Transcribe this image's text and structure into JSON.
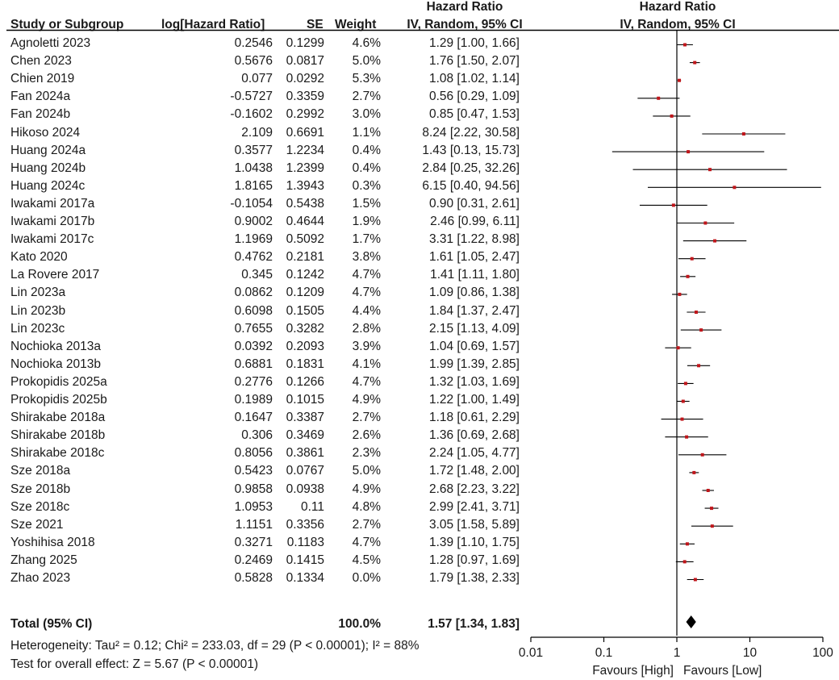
{
  "headers": {
    "study": "Study or Subgroup",
    "loghr": "log[Hazard Ratio]",
    "se": "SE",
    "weight": "Weight",
    "hr_top": "Hazard Ratio",
    "hr_bottom": "IV, Random, 95% CI",
    "plot_top": "Hazard Ratio",
    "plot_bottom": "IV, Random, 95% CI"
  },
  "rows": [
    {
      "study": "Agnoletti 2023",
      "loghr": "0.2546",
      "se": "0.1299",
      "weight": "4.6%",
      "ci": "1.29 [1.00, 1.66]"
    },
    {
      "study": "Chen 2023",
      "loghr": "0.5676",
      "se": "0.0817",
      "weight": "5.0%",
      "ci": "1.76 [1.50, 2.07]"
    },
    {
      "study": "Chien 2019",
      "loghr": "0.077",
      "se": "0.0292",
      "weight": "5.3%",
      "ci": "1.08 [1.02, 1.14]"
    },
    {
      "study": "Fan 2024a",
      "loghr": "-0.5727",
      "se": "0.3359",
      "weight": "2.7%",
      "ci": "0.56 [0.29, 1.09]"
    },
    {
      "study": "Fan 2024b",
      "loghr": "-0.1602",
      "se": "0.2992",
      "weight": "3.0%",
      "ci": "0.85 [0.47, 1.53]"
    },
    {
      "study": "Hikoso 2024",
      "loghr": "2.109",
      "se": "0.6691",
      "weight": "1.1%",
      "ci": "8.24 [2.22, 30.58]"
    },
    {
      "study": "Huang 2024a",
      "loghr": "0.3577",
      "se": "1.2234",
      "weight": "0.4%",
      "ci": "1.43 [0.13, 15.73]"
    },
    {
      "study": "Huang 2024b",
      "loghr": "1.0438",
      "se": "1.2399",
      "weight": "0.4%",
      "ci": "2.84 [0.25, 32.26]"
    },
    {
      "study": "Huang 2024c",
      "loghr": "1.8165",
      "se": "1.3943",
      "weight": "0.3%",
      "ci": "6.15 [0.40, 94.56]"
    },
    {
      "study": "Iwakami 2017a",
      "loghr": "-0.1054",
      "se": "0.5438",
      "weight": "1.5%",
      "ci": "0.90 [0.31, 2.61]"
    },
    {
      "study": "Iwakami 2017b",
      "loghr": "0.9002",
      "se": "0.4644",
      "weight": "1.9%",
      "ci": "2.46 [0.99, 6.11]"
    },
    {
      "study": "Iwakami 2017c",
      "loghr": "1.1969",
      "se": "0.5092",
      "weight": "1.7%",
      "ci": "3.31 [1.22, 8.98]"
    },
    {
      "study": "Kato 2020",
      "loghr": "0.4762",
      "se": "0.2181",
      "weight": "3.8%",
      "ci": "1.61 [1.05, 2.47]"
    },
    {
      "study": "La Rovere 2017",
      "loghr": "0.345",
      "se": "0.1242",
      "weight": "4.7%",
      "ci": "1.41 [1.11, 1.80]"
    },
    {
      "study": "Lin 2023a",
      "loghr": "0.0862",
      "se": "0.1209",
      "weight": "4.7%",
      "ci": "1.09 [0.86, 1.38]"
    },
    {
      "study": "Lin 2023b",
      "loghr": "0.6098",
      "se": "0.1505",
      "weight": "4.4%",
      "ci": "1.84 [1.37, 2.47]"
    },
    {
      "study": "Lin 2023c",
      "loghr": "0.7655",
      "se": "0.3282",
      "weight": "2.8%",
      "ci": "2.15 [1.13, 4.09]"
    },
    {
      "study": "Nochioka 2013a",
      "loghr": "0.0392",
      "se": "0.2093",
      "weight": "3.9%",
      "ci": "1.04 [0.69, 1.57]"
    },
    {
      "study": "Nochioka 2013b",
      "loghr": "0.6881",
      "se": "0.1831",
      "weight": "4.1%",
      "ci": "1.99 [1.39, 2.85]"
    },
    {
      "study": "Prokopidis 2025a",
      "loghr": "0.2776",
      "se": "0.1266",
      "weight": "4.7%",
      "ci": "1.32 [1.03, 1.69]"
    },
    {
      "study": "Prokopidis 2025b",
      "loghr": "0.1989",
      "se": "0.1015",
      "weight": "4.9%",
      "ci": "1.22 [1.00, 1.49]"
    },
    {
      "study": "Shirakabe 2018a",
      "loghr": "0.1647",
      "se": "0.3387",
      "weight": "2.7%",
      "ci": "1.18 [0.61, 2.29]"
    },
    {
      "study": "Shirakabe 2018b",
      "loghr": "0.306",
      "se": "0.3469",
      "weight": "2.6%",
      "ci": "1.36 [0.69, 2.68]"
    },
    {
      "study": "Shirakabe 2018c",
      "loghr": "0.8056",
      "se": "0.3861",
      "weight": "2.3%",
      "ci": "2.24 [1.05, 4.77]"
    },
    {
      "study": "Sze 2018a",
      "loghr": "0.5423",
      "se": "0.0767",
      "weight": "5.0%",
      "ci": "1.72 [1.48, 2.00]"
    },
    {
      "study": "Sze 2018b",
      "loghr": "0.9858",
      "se": "0.0938",
      "weight": "4.9%",
      "ci": "2.68 [2.23, 3.22]"
    },
    {
      "study": "Sze 2018c",
      "loghr": "1.0953",
      "se": "0.11",
      "weight": "4.8%",
      "ci": "2.99 [2.41, 3.71]"
    },
    {
      "study": "Sze 2021",
      "loghr": "1.1151",
      "se": "0.3356",
      "weight": "2.7%",
      "ci": "3.05 [1.58, 5.89]"
    },
    {
      "study": "Yoshihisa 2018",
      "loghr": "0.3271",
      "se": "0.1183",
      "weight": "4.7%",
      "ci": "1.39 [1.10, 1.75]"
    },
    {
      "study": "Zhang 2025",
      "loghr": "0.2469",
      "se": "0.1415",
      "weight": "4.5%",
      "ci": "1.28 [0.97, 1.69]"
    },
    {
      "study": "Zhao 2023",
      "loghr": "0.5828",
      "se": "0.1334",
      "weight": "0.0%",
      "ci": "1.79 [1.38, 2.33]"
    }
  ],
  "total": {
    "label": "Total (95% CI)",
    "weight": "100.0%",
    "ci": "1.57 [1.34, 1.83]"
  },
  "heterogeneity": "Heterogeneity: Tau² = 0.12; Chi² = 233.03, df = 29 (P < 0.00001); I² = 88%",
  "overall_effect": "Test for overall effect: Z = 5.67 (P < 0.00001)",
  "axis": {
    "ticks": [
      0.01,
      0.1,
      1,
      10,
      100
    ],
    "tick_labels": [
      "0.01",
      "0.1",
      "1",
      "10",
      "100"
    ],
    "favours_left": "Favours [High]",
    "favours_right": "Favours [Low]"
  },
  "colors": {
    "marker": "#c0161b",
    "line": "#000000"
  },
  "chart_data": {
    "type": "scatter",
    "title": "Hazard Ratio",
    "xlabel": "",
    "ylabel": "",
    "scale": "log",
    "xlim": [
      0.01,
      100
    ],
    "grid": false,
    "legend": "none",
    "categories": [
      "Agnoletti 2023",
      "Chen 2023",
      "Chien 2019",
      "Fan 2024a",
      "Fan 2024b",
      "Hikoso 2024",
      "Huang 2024a",
      "Huang 2024b",
      "Huang 2024c",
      "Iwakami 2017a",
      "Iwakami 2017b",
      "Iwakami 2017c",
      "Kato 2020",
      "La Rovere 2017",
      "Lin 2023a",
      "Lin 2023b",
      "Lin 2023c",
      "Nochioka 2013a",
      "Nochioka 2013b",
      "Prokopidis 2025a",
      "Prokopidis 2025b",
      "Shirakabe 2018a",
      "Shirakabe 2018b",
      "Shirakabe 2018c",
      "Sze 2018a",
      "Sze 2018b",
      "Sze 2018c",
      "Sze 2021",
      "Yoshihisa 2018",
      "Zhang 2025",
      "Zhao 2023"
    ],
    "hr": [
      1.29,
      1.76,
      1.08,
      0.56,
      0.85,
      8.24,
      1.43,
      2.84,
      6.15,
      0.9,
      2.46,
      3.31,
      1.61,
      1.41,
      1.09,
      1.84,
      2.15,
      1.04,
      1.99,
      1.32,
      1.22,
      1.18,
      1.36,
      2.24,
      1.72,
      2.68,
      2.99,
      3.05,
      1.39,
      1.28,
      1.79
    ],
    "lower": [
      1.0,
      1.5,
      1.02,
      0.29,
      0.47,
      2.22,
      0.13,
      0.25,
      0.4,
      0.31,
      0.99,
      1.22,
      1.05,
      1.11,
      0.86,
      1.37,
      1.13,
      0.69,
      1.39,
      1.03,
      1.0,
      0.61,
      0.69,
      1.05,
      1.48,
      2.23,
      2.41,
      1.58,
      1.1,
      0.97,
      1.38
    ],
    "upper": [
      1.66,
      2.07,
      1.14,
      1.09,
      1.53,
      30.58,
      15.73,
      32.26,
      94.56,
      2.61,
      6.11,
      8.98,
      2.47,
      1.8,
      1.38,
      2.47,
      4.09,
      1.57,
      2.85,
      1.69,
      1.49,
      2.29,
      2.68,
      4.77,
      2.0,
      3.22,
      3.71,
      5.89,
      1.75,
      1.69,
      2.33
    ],
    "pooled": {
      "hr": 1.57,
      "lower": 1.34,
      "upper": 1.83
    }
  }
}
